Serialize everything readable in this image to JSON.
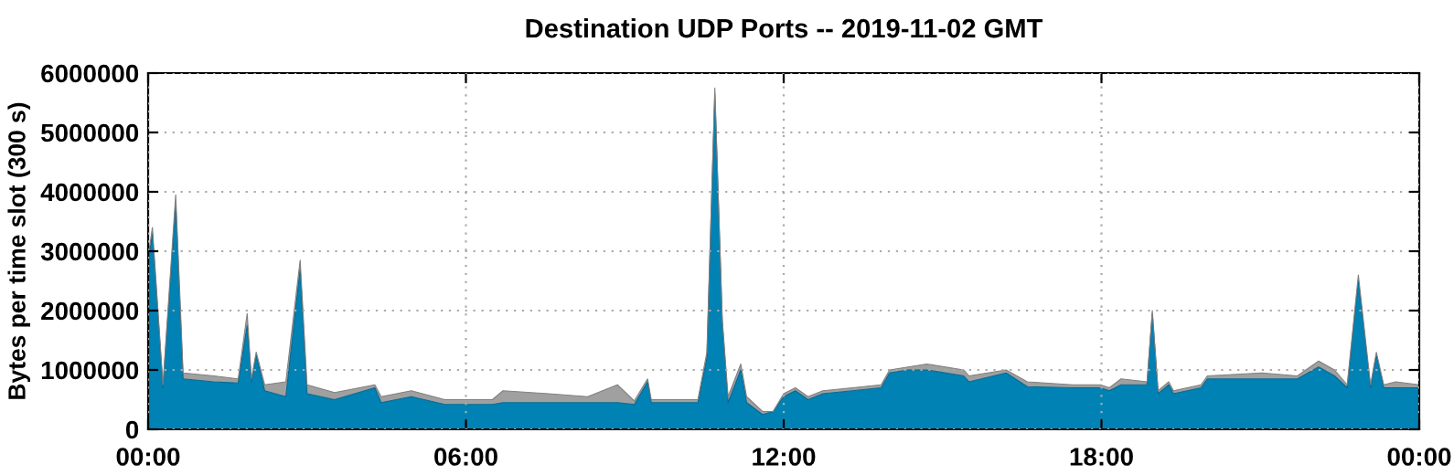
{
  "chart_data": {
    "type": "area",
    "stacked": true,
    "title": "Destination UDP Ports -- 2019-11-02 GMT",
    "ylabel": "Bytes per time slot (300 s)",
    "x": [
      0,
      0.08,
      0.28,
      0.52,
      0.66,
      1.24,
      1.7,
      1.87,
      1.95,
      2.04,
      2.2,
      2.6,
      2.87,
      3.0,
      3.52,
      4.28,
      4.4,
      4.97,
      5.6,
      6.5,
      6.7,
      7.56,
      8.3,
      8.86,
      9.18,
      9.43,
      9.5,
      10.38,
      10.55,
      10.7,
      10.84,
      10.95,
      11.19,
      11.3,
      11.6,
      11.8,
      12.0,
      12.22,
      12.46,
      12.74,
      13.3,
      13.84,
      14.0,
      14.35,
      14.7,
      15.4,
      15.5,
      16.2,
      16.6,
      17.46,
      17.98,
      18.15,
      18.37,
      18.86,
      18.96,
      19.07,
      19.27,
      19.36,
      19.88,
      20.0,
      21.03,
      21.7,
      22.1,
      22.4,
      22.64,
      22.85,
      23.08,
      23.19,
      23.33,
      23.56,
      24
    ],
    "series": [
      {
        "color": "#0082b4",
        "values": [
          2800000,
          3300000,
          700000,
          3800000,
          850000,
          800000,
          780000,
          1750000,
          800000,
          1250000,
          650000,
          550000,
          2700000,
          600000,
          500000,
          700000,
          450000,
          550000,
          420000,
          420000,
          450000,
          450000,
          450000,
          450000,
          420000,
          800000,
          450000,
          450000,
          1200000,
          5650000,
          1800000,
          450000,
          1000000,
          450000,
          250000,
          300000,
          550000,
          650000,
          500000,
          600000,
          650000,
          700000,
          950000,
          1000000,
          1000000,
          900000,
          800000,
          950000,
          720000,
          700000,
          700000,
          650000,
          750000,
          750000,
          1950000,
          600000,
          750000,
          600000,
          700000,
          850000,
          850000,
          850000,
          1050000,
          900000,
          700000,
          2500000,
          700000,
          1250000,
          700000,
          700000,
          700000
        ]
      },
      {
        "color": "#a0a0a0",
        "values": [
          100000,
          100000,
          50000,
          150000,
          100000,
          100000,
          70000,
          200000,
          50000,
          50000,
          100000,
          250000,
          150000,
          150000,
          120000,
          50000,
          100000,
          100000,
          80000,
          80000,
          200000,
          150000,
          100000,
          300000,
          60000,
          50000,
          50000,
          50000,
          100000,
          100000,
          50000,
          100000,
          100000,
          100000,
          50000,
          0,
          50000,
          50000,
          50000,
          50000,
          50000,
          50000,
          50000,
          50000,
          100000,
          100000,
          100000,
          50000,
          80000,
          50000,
          50000,
          50000,
          100000,
          50000,
          50000,
          50000,
          50000,
          50000,
          50000,
          50000,
          100000,
          50000,
          100000,
          100000,
          50000,
          100000,
          50000,
          50000,
          50000,
          100000,
          50000
        ]
      }
    ],
    "xlim": [
      0,
      24
    ],
    "xticks": [
      {
        "value": 0,
        "label": "00:00"
      },
      {
        "value": 6,
        "label": "06:00"
      },
      {
        "value": 12,
        "label": "12:00"
      },
      {
        "value": 18,
        "label": "18:00"
      },
      {
        "value": 24,
        "label": "00:00"
      }
    ],
    "ylim": [
      0,
      6000000
    ],
    "yticks": [
      0,
      1000000,
      2000000,
      3000000,
      4000000,
      5000000,
      6000000
    ],
    "grid": true,
    "line_style": "dotted"
  }
}
